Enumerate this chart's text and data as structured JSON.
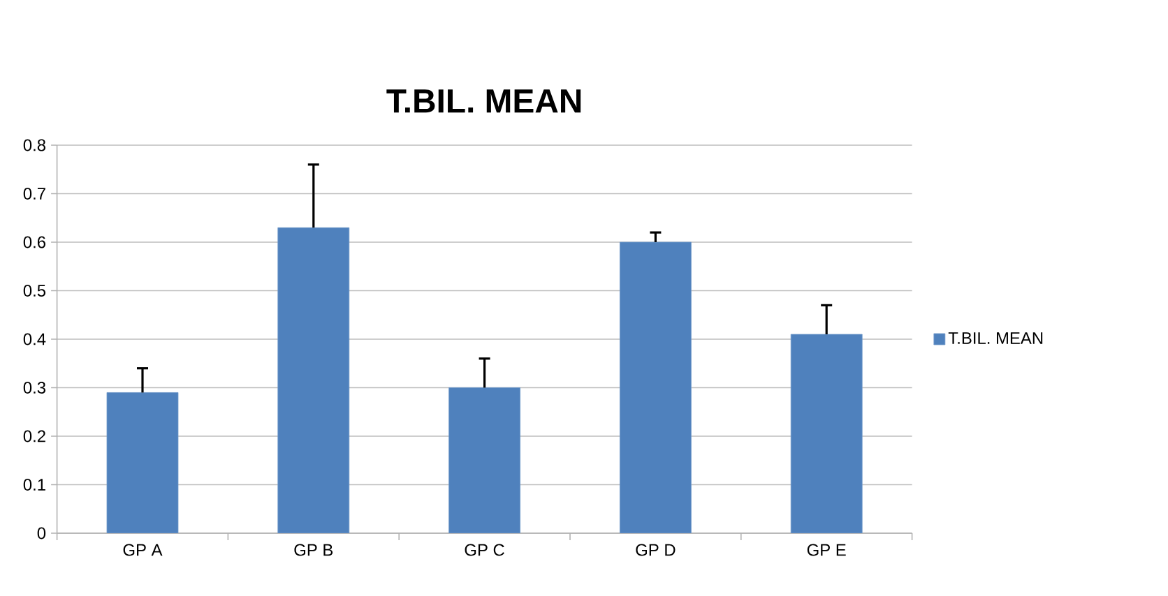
{
  "chart_data": {
    "type": "bar",
    "title": "T.BIL. MEAN",
    "categories": [
      "GP A",
      "GP B",
      "GP C",
      "GP D",
      "GP E"
    ],
    "series": [
      {
        "name": "T.BIL. MEAN",
        "color": "#4f81bd",
        "values": [
          0.29,
          0.63,
          0.3,
          0.6,
          0.41
        ],
        "errors": [
          [
            0.29,
            0.34
          ],
          [
            0.63,
            0.76
          ],
          [
            0.3,
            0.36
          ],
          [
            0.6,
            0.62
          ],
          [
            0.41,
            0.47
          ]
        ]
      }
    ],
    "ylim": [
      0,
      0.8
    ],
    "yticks": [
      0,
      0.1,
      0.2,
      0.3,
      0.4,
      0.5,
      0.6,
      0.7,
      0.8
    ],
    "grid": "y",
    "legend": "right"
  }
}
